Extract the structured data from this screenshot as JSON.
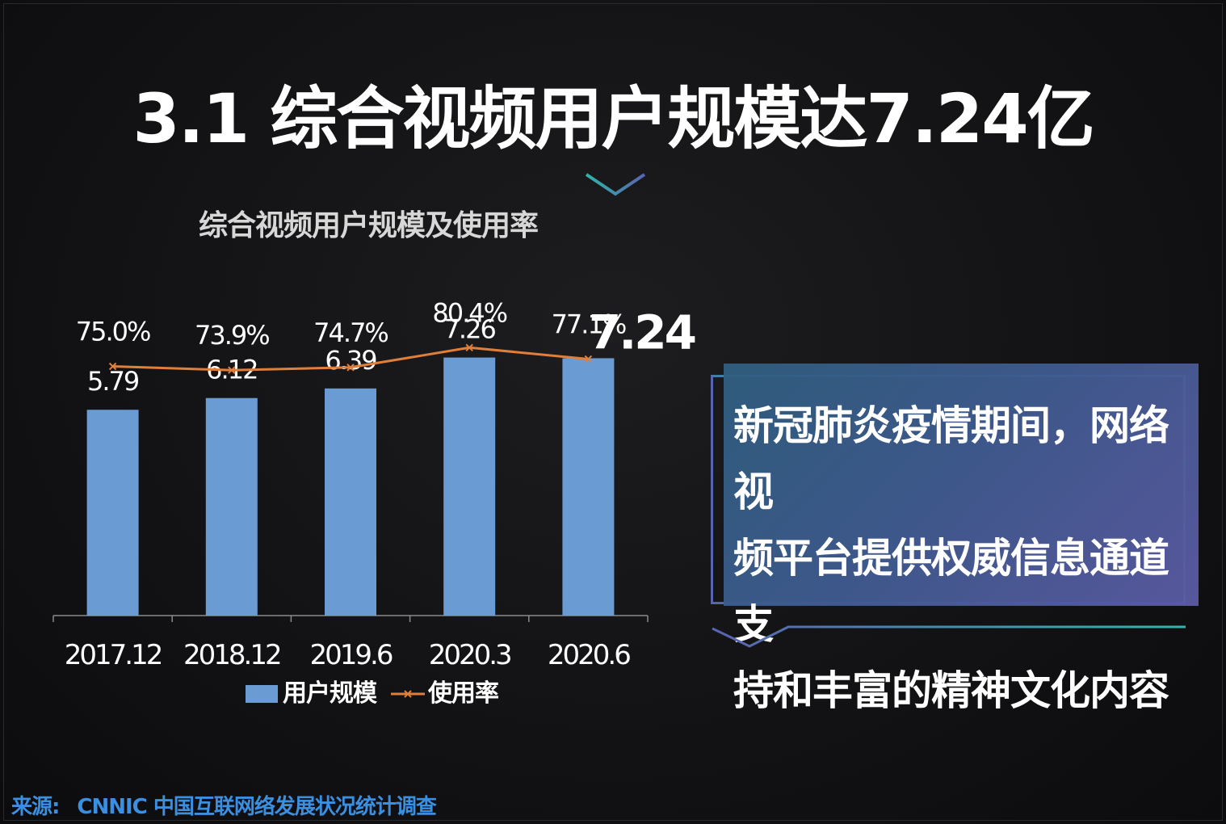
{
  "page": {
    "title": "3.1 综合视频用户规模达7.24亿",
    "callout": [
      "新冠肺炎疫情期间，网络视",
      "频平台提供权威信息通道支",
      "持和丰富的精神文化内容"
    ],
    "source_label": "来源:",
    "source_text": "CNNIC 中国互联网络发展状况统计调查",
    "colors": {
      "bar": "#6a9bd3",
      "line": "#e07f3a",
      "source": "#3b8fe0",
      "accent_teal": "#2fb5a9"
    }
  },
  "chart_data": {
    "type": "bar",
    "title": "综合视频用户规模及使用率",
    "categories": [
      "2017.12",
      "2018.12",
      "2019.6",
      "2020.3",
      "2020.6"
    ],
    "series": [
      {
        "name": "用户规模",
        "type": "bar",
        "values": [
          5.79,
          6.12,
          6.39,
          7.26,
          7.24
        ],
        "labels": [
          "5.79",
          "6.12",
          "6.39",
          "7.26",
          "7.24"
        ]
      },
      {
        "name": "使用率",
        "type": "line",
        "values": [
          75.0,
          73.9,
          74.7,
          80.4,
          77.1
        ],
        "labels": [
          "75.0%",
          "73.9%",
          "74.7%",
          "80.4%",
          "77.1%"
        ]
      }
    ],
    "legend_position": "bottom",
    "grid": false
  }
}
